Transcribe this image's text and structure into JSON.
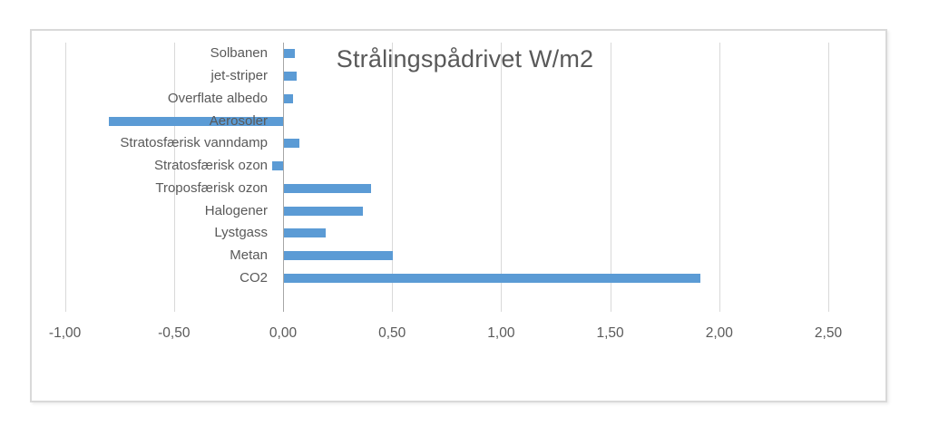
{
  "chart_data": {
    "type": "bar",
    "orientation": "horizontal",
    "title": "Strålingspådrivet W/m2",
    "categories": [
      "Solbanen",
      "jet-striper",
      "Overflate albedo",
      "Aerosoler",
      "Stratosfærisk vanndamp",
      "Stratosfærisk ozon",
      "Troposfærisk ozon",
      "Halogener",
      "Lystgass",
      "Metan",
      "CO2"
    ],
    "values": [
      0.05,
      0.06,
      0.04,
      -0.8,
      0.07,
      -0.05,
      0.4,
      0.36,
      0.19,
      0.5,
      1.91
    ],
    "unit": "W/m2",
    "xlim": [
      -1.0,
      2.5
    ],
    "x_ticks": [
      "-1,00",
      "-0,50",
      "0,00",
      "0,50",
      "1,00",
      "1,50",
      "2,00",
      "2,50"
    ],
    "x_tick_values": [
      -1.0,
      -0.5,
      0.0,
      0.5,
      1.0,
      1.5,
      2.0,
      2.5
    ],
    "grid": true,
    "legend": "none",
    "bar_color": "#5b9bd5",
    "gridline_color": "#d9d9d9",
    "zero_axis_color": "#a6a6a6",
    "text_color": "#595959"
  }
}
